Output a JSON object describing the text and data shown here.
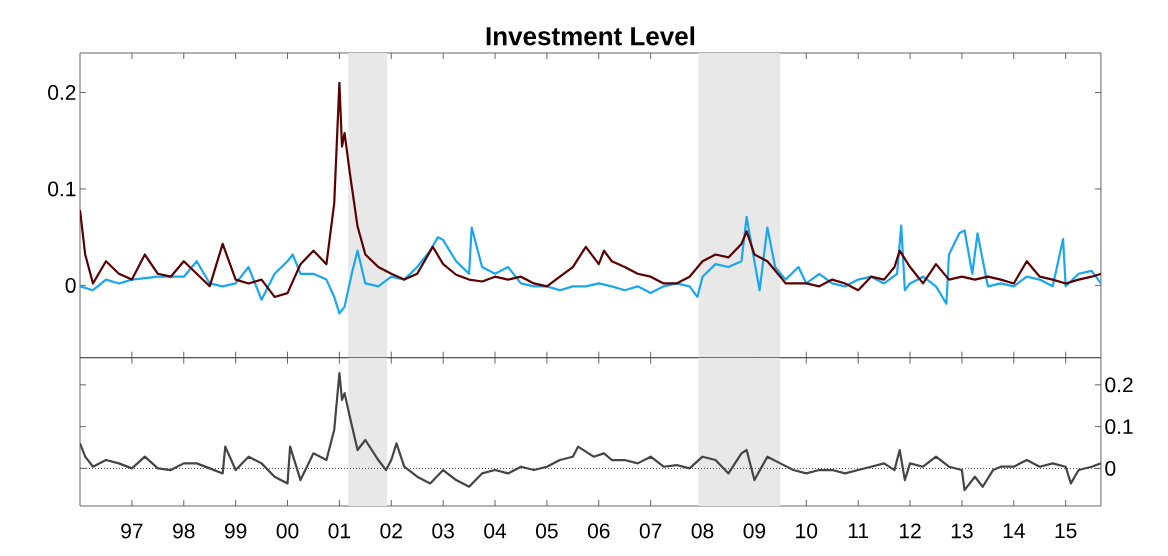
{
  "chart_data": [
    {
      "type": "line",
      "title": "Investment Level",
      "tick_labels": "y",
      "xlim": [
        1996.0,
        2015.68
      ],
      "ylim": [
        -0.075,
        0.241
      ],
      "yticks": [
        0,
        0.1,
        0.2
      ],
      "xticks": [
        {
          "value": 1997,
          "label": null
        },
        {
          "value": 1998,
          "label": null
        },
        {
          "value": 1999,
          "label": null
        },
        {
          "value": 2000,
          "label": null
        },
        {
          "value": 2001,
          "label": null
        },
        {
          "value": 2002,
          "label": null
        },
        {
          "value": 2003,
          "label": null
        },
        {
          "value": 2004,
          "label": null
        },
        {
          "value": 2005,
          "label": null
        },
        {
          "value": 2006,
          "label": null
        },
        {
          "value": 2007,
          "label": null
        },
        {
          "value": 2008,
          "label": null
        },
        {
          "value": 2009,
          "label": null
        },
        {
          "value": 2010,
          "label": null
        },
        {
          "value": 2011,
          "label": null
        },
        {
          "value": 2012,
          "label": null
        },
        {
          "value": 2013,
          "label": null
        },
        {
          "value": 2014,
          "label": null
        },
        {
          "value": 2015,
          "label": null
        }
      ],
      "bands": [
        {
          "axis": "x",
          "from": 2001.17,
          "to": 2001.92,
          "color": "#e8e8e8"
        },
        {
          "axis": "x",
          "from": 2007.92,
          "to": 2009.5,
          "color": "#e8e8e8"
        }
      ],
      "series": [
        {
          "color": "#1aa7ee",
          "x": [
            1996.0,
            1996.25,
            1996.5,
            1996.75,
            1997.0,
            1997.5,
            1998.0,
            1998.25,
            1998.5,
            1998.75,
            1999.0,
            1999.25,
            1999.5,
            1999.75,
            2000.0,
            2000.1,
            2000.25,
            2000.5,
            2000.75,
            2000.9,
            2001.0,
            2001.1,
            2001.25,
            2001.35,
            2001.5,
            2001.75,
            2002.0,
            2002.25,
            2002.5,
            2002.75,
            2002.9,
            2003.0,
            2003.25,
            2003.5,
            2003.55,
            2003.75,
            2004.0,
            2004.25,
            2004.5,
            2004.75,
            2005.0,
            2005.25,
            2005.5,
            2005.75,
            2006.0,
            2006.25,
            2006.5,
            2006.75,
            2007.0,
            2007.25,
            2007.5,
            2007.75,
            2007.9,
            2008.0,
            2008.25,
            2008.5,
            2008.75,
            2008.85,
            2008.95,
            2009.1,
            2009.25,
            2009.4,
            2009.6,
            2009.85,
            2010.0,
            2010.25,
            2010.5,
            2010.75,
            2011.0,
            2011.25,
            2011.5,
            2011.75,
            2011.83,
            2011.9,
            2012.0,
            2012.25,
            2012.5,
            2012.7,
            2012.75,
            2012.95,
            2013.05,
            2013.2,
            2013.3,
            2013.5,
            2013.75,
            2014.0,
            2014.25,
            2014.5,
            2014.75,
            2014.95,
            2015.0,
            2015.25,
            2015.5,
            2015.68
          ],
          "values": [
            -0.001,
            -0.005,
            0.006,
            0.002,
            0.006,
            0.009,
            0.009,
            0.025,
            0.002,
            -0.001,
            0.002,
            0.019,
            -0.015,
            0.012,
            0.025,
            0.032,
            0.012,
            0.012,
            0.006,
            -0.012,
            -0.029,
            -0.022,
            0.015,
            0.036,
            0.002,
            -0.001,
            0.009,
            0.006,
            0.019,
            0.036,
            0.05,
            0.047,
            0.025,
            0.012,
            0.06,
            0.019,
            0.012,
            0.019,
            0.002,
            -0.001,
            -0.001,
            -0.005,
            -0.001,
            -0.001,
            0.002,
            -0.001,
            -0.005,
            -0.001,
            -0.008,
            -0.001,
            0.002,
            -0.001,
            -0.012,
            0.009,
            0.022,
            0.019,
            0.025,
            0.071,
            0.04,
            -0.005,
            0.06,
            0.019,
            0.006,
            0.019,
            0.002,
            0.012,
            0.002,
            -0.001,
            0.006,
            0.009,
            0.002,
            0.012,
            0.062,
            -0.005,
            0.002,
            0.009,
            -0.001,
            -0.019,
            0.032,
            0.054,
            0.057,
            0.012,
            0.054,
            -0.001,
            0.002,
            -0.001,
            0.009,
            0.006,
            -0.001,
            0.048,
            -0.001,
            0.012,
            0.015,
            0.002
          ]
        },
        {
          "color": "#5a0000",
          "x": [
            1996.0,
            1996.1,
            1996.25,
            1996.5,
            1996.75,
            1997.0,
            1997.25,
            1997.5,
            1997.75,
            1998.0,
            1998.25,
            1998.5,
            1998.75,
            1999.0,
            1999.25,
            1999.5,
            1999.75,
            2000.0,
            2000.25,
            2000.5,
            2000.75,
            2000.9,
            2001.0,
            2001.05,
            2001.1,
            2001.2,
            2001.35,
            2001.5,
            2001.75,
            2002.0,
            2002.25,
            2002.5,
            2002.8,
            2003.0,
            2003.25,
            2003.5,
            2003.75,
            2004.0,
            2004.25,
            2004.5,
            2004.75,
            2005.0,
            2005.25,
            2005.5,
            2005.75,
            2006.0,
            2006.1,
            2006.25,
            2006.5,
            2006.75,
            2007.0,
            2007.25,
            2007.5,
            2007.75,
            2008.0,
            2008.25,
            2008.5,
            2008.75,
            2008.85,
            2009.0,
            2009.25,
            2009.5,
            2009.6,
            2010.0,
            2010.25,
            2010.5,
            2010.75,
            2011.0,
            2011.25,
            2011.5,
            2011.7,
            2011.8,
            2012.0,
            2012.25,
            2012.5,
            2012.75,
            2013.0,
            2013.25,
            2013.5,
            2013.75,
            2014.0,
            2014.25,
            2014.5,
            2014.75,
            2015.0,
            2015.25,
            2015.5,
            2015.68
          ],
          "values": [
            0.078,
            0.032,
            0.002,
            0.025,
            0.012,
            0.006,
            0.032,
            0.012,
            0.009,
            0.025,
            0.012,
            -0.001,
            0.043,
            0.006,
            0.002,
            0.006,
            -0.012,
            -0.008,
            0.022,
            0.036,
            0.022,
            0.085,
            0.21,
            0.144,
            0.158,
            0.117,
            0.061,
            0.032,
            0.019,
            0.012,
            0.006,
            0.012,
            0.04,
            0.022,
            0.011,
            0.006,
            0.004,
            0.009,
            0.006,
            0.009,
            0.002,
            -0.001,
            0.009,
            0.019,
            0.04,
            0.022,
            0.036,
            0.025,
            0.019,
            0.012,
            0.009,
            0.002,
            0.002,
            0.009,
            0.025,
            0.032,
            0.029,
            0.043,
            0.056,
            0.032,
            0.025,
            0.009,
            0.002,
            0.002,
            -0.001,
            0.006,
            0.002,
            -0.005,
            0.009,
            0.006,
            0.019,
            0.036,
            0.019,
            0.002,
            0.022,
            0.006,
            0.009,
            0.006,
            0.009,
            0.006,
            0.002,
            0.025,
            0.009,
            0.006,
            0.002,
            0.006,
            0.009,
            0.012
          ]
        }
      ]
    },
    {
      "type": "line",
      "xlim": [
        1996.0,
        2015.68
      ],
      "y2lim": [
        -0.09,
        0.265
      ],
      "y2ticks": [
        0,
        0.1,
        0.2
      ],
      "xticks": [
        {
          "value": 1997,
          "label": "97"
        },
        {
          "value": 1998,
          "label": "98"
        },
        {
          "value": 1999,
          "label": "99"
        },
        {
          "value": 2000,
          "label": "00"
        },
        {
          "value": 2001,
          "label": "01"
        },
        {
          "value": 2002,
          "label": "02"
        },
        {
          "value": 2003,
          "label": "03"
        },
        {
          "value": 2004,
          "label": "04"
        },
        {
          "value": 2005,
          "label": "05"
        },
        {
          "value": 2006,
          "label": "06"
        },
        {
          "value": 2007,
          "label": "07"
        },
        {
          "value": 2008,
          "label": "08"
        },
        {
          "value": 2009,
          "label": "09"
        },
        {
          "value": 2010,
          "label": "10"
        },
        {
          "value": 2011,
          "label": "11"
        },
        {
          "value": 2012,
          "label": "12"
        },
        {
          "value": 2013,
          "label": "13"
        },
        {
          "value": 2014,
          "label": "14"
        },
        {
          "value": 2015,
          "label": "15"
        }
      ],
      "bands": [
        {
          "axis": "x",
          "from": 2001.17,
          "to": 2001.92,
          "color": "#e8e8e8"
        },
        {
          "axis": "x",
          "from": 2007.92,
          "to": 2009.5,
          "color": "#e8e8e8"
        }
      ],
      "ref_lines": [
        {
          "axis": "y2",
          "value": 0,
          "line_style": "dotted",
          "color": "#444444"
        }
      ],
      "series": [
        {
          "color": "#454545",
          "axis": "y2",
          "x": [
            1996.0,
            1996.1,
            1996.25,
            1996.5,
            1996.75,
            1997.0,
            1997.25,
            1997.5,
            1997.75,
            1998.0,
            1998.25,
            1998.5,
            1998.75,
            1998.8,
            1999.0,
            1999.25,
            1999.5,
            1999.75,
            2000.0,
            2000.05,
            2000.25,
            2000.5,
            2000.75,
            2000.9,
            2001.0,
            2001.05,
            2001.1,
            2001.2,
            2001.35,
            2001.5,
            2001.75,
            2001.9,
            2002.0,
            2002.1,
            2002.25,
            2002.5,
            2002.75,
            2003.0,
            2003.25,
            2003.5,
            2003.75,
            2004.0,
            2004.25,
            2004.5,
            2004.75,
            2005.0,
            2005.25,
            2005.5,
            2005.6,
            2005.9,
            2006.1,
            2006.25,
            2006.5,
            2006.75,
            2007.0,
            2007.25,
            2007.5,
            2007.75,
            2008.0,
            2008.25,
            2008.5,
            2008.75,
            2008.85,
            2009.0,
            2009.25,
            2009.5,
            2009.75,
            2010.0,
            2010.25,
            2010.5,
            2010.75,
            2011.0,
            2011.25,
            2011.5,
            2011.7,
            2011.8,
            2011.9,
            2012.0,
            2012.25,
            2012.5,
            2012.75,
            2013.0,
            2013.05,
            2013.25,
            2013.4,
            2013.6,
            2013.75,
            2014.0,
            2014.25,
            2014.5,
            2014.75,
            2015.0,
            2015.1,
            2015.25,
            2015.5,
            2015.68
          ],
          "values": [
            0.06,
            0.028,
            0.004,
            0.02,
            0.012,
            0,
            0.028,
            0,
            -0.004,
            0.012,
            0.012,
            0,
            -0.012,
            0.052,
            -0.004,
            0.028,
            0.012,
            -0.02,
            -0.036,
            0.052,
            -0.028,
            0.036,
            0.02,
            0.092,
            0.228,
            0.164,
            0.18,
            0.124,
            0.044,
            0.068,
            0.02,
            -0.004,
            0.02,
            0.06,
            0.004,
            -0.02,
            -0.036,
            -0.004,
            -0.028,
            -0.044,
            -0.012,
            -0.004,
            -0.012,
            0.004,
            -0.004,
            0.004,
            0.02,
            0.028,
            0.052,
            0.028,
            0.036,
            0.02,
            0.02,
            0.012,
            0.028,
            0.004,
            0.008,
            0,
            0.028,
            0.02,
            -0.012,
            0.036,
            0.044,
            -0.028,
            0.028,
            0.012,
            -0.004,
            -0.012,
            -0.004,
            -0.004,
            -0.012,
            -0.004,
            0.004,
            0.012,
            -0.004,
            0.044,
            -0.028,
            0.012,
            0.004,
            0.028,
            0.004,
            -0.004,
            -0.052,
            -0.02,
            -0.044,
            -0.004,
            0.004,
            0.004,
            0.02,
            0.004,
            0.012,
            0.004,
            -0.036,
            -0.004,
            0.004,
            0.012
          ]
        }
      ]
    }
  ]
}
